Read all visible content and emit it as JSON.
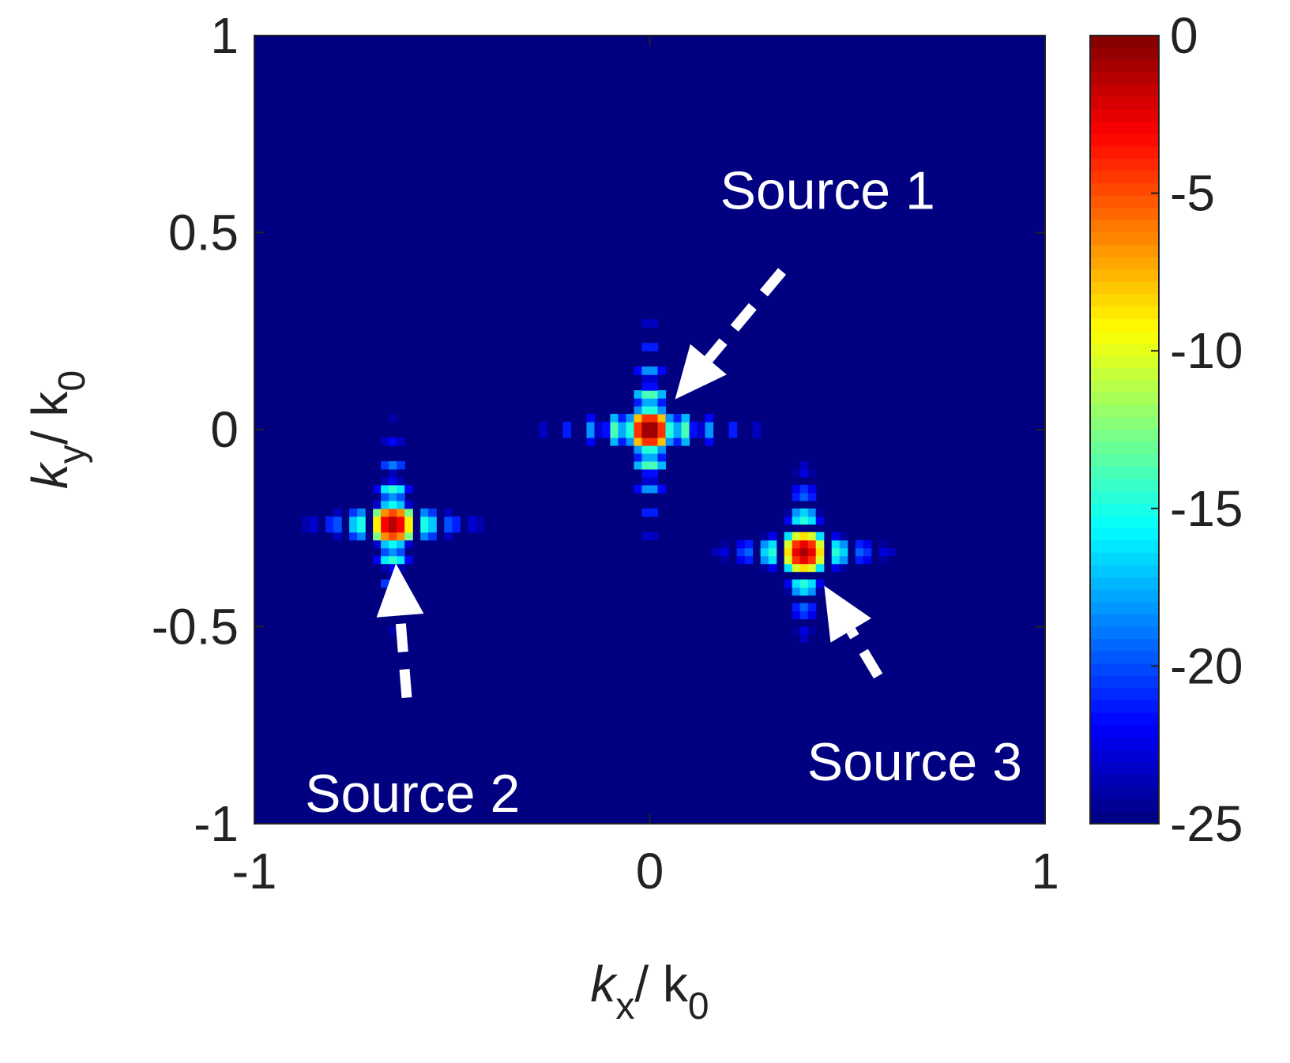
{
  "chart_data": {
    "type": "heatmap",
    "title": "",
    "xlabel": {
      "main": "k",
      "sub": "x",
      "rest": "/ k",
      "sub2": "0"
    },
    "ylabel": {
      "main": "k",
      "sub": "y",
      "rest": "/ k",
      "sub2": "0"
    },
    "xlim": [
      -1,
      1
    ],
    "ylim": [
      -1,
      1
    ],
    "xticks": [
      -1,
      0,
      1
    ],
    "xtick_labels": [
      "-1",
      "0",
      "1"
    ],
    "yticks": [
      -1,
      -0.5,
      0,
      0.5,
      1
    ],
    "ytick_labels": [
      "-1",
      "-0.5",
      "0",
      "0.5",
      "1"
    ],
    "colormap": "jet",
    "clim": [
      -25,
      0
    ],
    "colorbar_ticks": [
      0,
      -5,
      -10,
      -15,
      -20,
      -25
    ],
    "colorbar_tick_labels": [
      "0",
      "-5",
      "-10",
      "-15",
      "-20",
      "-25"
    ],
    "grid": false,
    "sources": [
      {
        "label": "Source 1",
        "kx": 0.0,
        "ky": 0.0,
        "peak_db": 0
      },
      {
        "label": "Source 2",
        "kx": -0.65,
        "ky": -0.24,
        "peak_db": -1
      },
      {
        "label": "Source 3",
        "kx": 0.39,
        "ky": -0.31,
        "peak_db": -1
      }
    ],
    "annotations": [
      {
        "text": "Source 1",
        "points_to": "Source 1",
        "label_kx": 0.45,
        "label_ky": 0.54
      },
      {
        "text": "Source 2",
        "points_to": "Source 2",
        "label_kx": -0.6,
        "label_ky": -0.86
      },
      {
        "text": "Source 3",
        "points_to": "Source 3",
        "label_kx": 0.67,
        "label_ky": -0.78
      }
    ]
  }
}
